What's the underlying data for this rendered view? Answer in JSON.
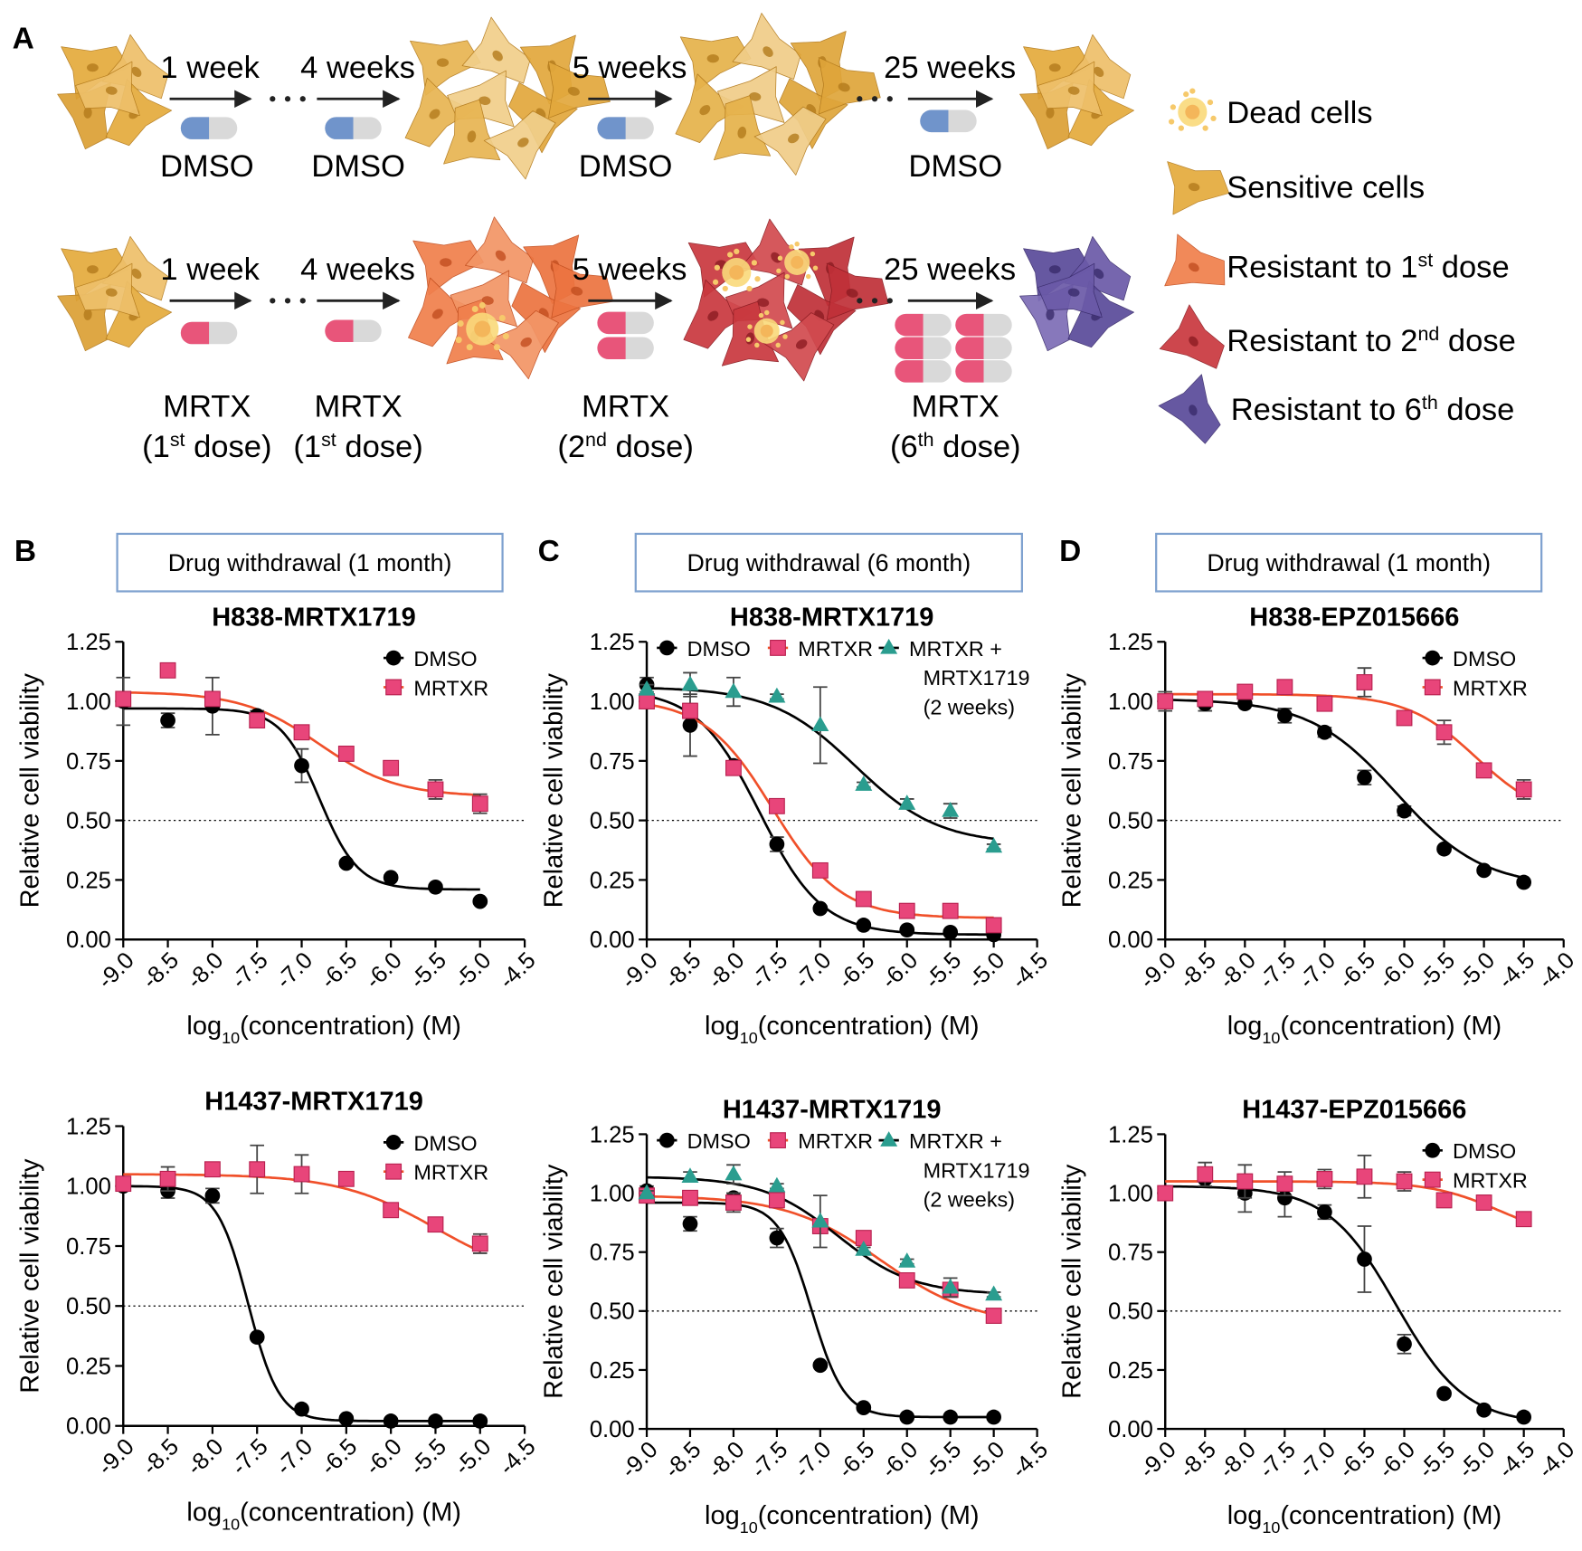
{
  "panel_a": {
    "label": "A",
    "rows": [
      {
        "steps": [
          {
            "time": "1 week",
            "drug": [
              [
                "DMSO"
              ]
            ]
          },
          {
            "time": "4 weeks",
            "drug": [
              [
                "DMSO"
              ]
            ]
          },
          {
            "time": "5 weeks",
            "drug": [
              [
                "DMSO"
              ]
            ]
          },
          {
            "time": "25 weeks",
            "drug": [
              [
                "DMSO"
              ]
            ]
          }
        ]
      },
      {
        "steps": [
          {
            "time": "1 week",
            "drug": [
              [
                "MRTX"
              ],
              [
                "(1",
                "st",
                " dose)"
              ]
            ]
          },
          {
            "time": "4 weeks",
            "drug": [
              [
                "MRTX"
              ],
              [
                "(1",
                "st",
                " dose)"
              ]
            ]
          },
          {
            "time": "5 weeks",
            "drug": [
              [
                "MRTX"
              ],
              [
                "(2",
                "nd",
                " dose)"
              ]
            ]
          },
          {
            "time": "25 weeks",
            "drug": [
              [
                "MRTX"
              ],
              [
                "(6",
                "th",
                " dose)"
              ]
            ]
          }
        ]
      }
    ],
    "legend": [
      [
        "Dead cells"
      ],
      [
        "Sensitive cells"
      ],
      [
        "Resistant to 1",
        "st",
        " dose"
      ],
      [
        "Resistant to 2",
        "nd",
        " dose"
      ],
      [
        "Resistant to 6",
        "th",
        " dose"
      ]
    ]
  },
  "columns": [
    {
      "label": "B",
      "header": "Drug withdrawal (1 month)"
    },
    {
      "label": "C",
      "header": "Drug withdrawal (6 month)"
    },
    {
      "label": "D",
      "header": "Drug withdrawal (1 month)"
    }
  ],
  "chart_data": [
    {
      "type": "scatter",
      "title": "H838-MRTX1719",
      "ylabel": "Relative cell viability",
      "xlabel": [
        "log",
        "10",
        "(concentration) (M)"
      ],
      "xlim": [
        -9,
        -4.5
      ],
      "ylim": [
        0,
        1.25
      ],
      "hline": 0.5,
      "legend": "upper-right",
      "xticks": [
        {
          "value": -9,
          "label": "-9.0"
        },
        -8.5,
        {
          "value": -8,
          "label": "-8.0"
        },
        -7.5,
        {
          "value": -7,
          "label": "-7.0"
        },
        -6.5,
        {
          "value": -6,
          "label": "-6.0"
        },
        -5.5,
        {
          "value": -5,
          "label": "-5.0"
        },
        -4.5
      ],
      "yticks": [
        {
          "value": 0,
          "label": "0.00"
        },
        0.25,
        {
          "value": 0.5,
          "label": "0.50"
        },
        0.75,
        {
          "value": 1,
          "label": "1.00"
        },
        1.25
      ],
      "x": [
        -9,
        -8.5,
        -8,
        -7.5,
        -7,
        -6.5,
        -6,
        -5.5,
        -5
      ],
      "series": [
        {
          "name": "DMSO",
          "color": "#000000",
          "line_color": "#000000",
          "marker": "circle",
          "values": [
            1.0,
            0.92,
            0.98,
            0.94,
            0.73,
            0.32,
            0.26,
            0.22,
            0.16
          ],
          "errors": [
            0.1,
            0.03,
            0.12,
            0.02,
            0.07,
            0.01,
            0.01,
            0.01,
            0.01
          ],
          "fit": {
            "top": 0.97,
            "bottom": 0.21,
            "log_ec50": -6.8,
            "hill": 2.0
          }
        },
        {
          "name": "MRTXR",
          "color": "#e8457a",
          "line_color": "#f0502a",
          "marker": "square",
          "values": [
            1.01,
            1.13,
            1.01,
            0.92,
            0.87,
            0.78,
            0.72,
            0.63,
            0.57
          ],
          "errors": [
            0.01,
            0.01,
            0.02,
            0.03,
            0.02,
            0.03,
            0.03,
            0.04,
            0.04
          ],
          "fit": {
            "top": 1.04,
            "bottom": 0.6,
            "log_ec50": -6.8,
            "hill": 1.0
          }
        }
      ]
    },
    {
      "type": "scatter",
      "title": "H838-MRTX1719",
      "ylabel": "Relative cell viability",
      "xlabel": [
        "log",
        "10",
        "(concentration) (M)"
      ],
      "xlim": [
        -9,
        -4.5
      ],
      "ylim": [
        0,
        1.25
      ],
      "hline": 0.5,
      "legend": "top",
      "xticks": [
        {
          "value": -9,
          "label": "-9.0"
        },
        -8.5,
        {
          "value": -8,
          "label": "-8.0"
        },
        -7.5,
        {
          "value": -7,
          "label": "-7.0"
        },
        -6.5,
        {
          "value": -6,
          "label": "-6.0"
        },
        -5.5,
        {
          "value": -5,
          "label": "-5.0"
        },
        -4.5
      ],
      "yticks": [
        {
          "value": 0,
          "label": "0.00"
        },
        0.25,
        {
          "value": 0.5,
          "label": "0.50"
        },
        0.75,
        {
          "value": 1,
          "label": "1.00"
        },
        1.25
      ],
      "x": [
        -9,
        -8.5,
        -8,
        -7.5,
        -7,
        -6.5,
        -6,
        -5.5,
        -5
      ],
      "series": [
        {
          "name": "DMSO",
          "color": "#000000",
          "line_color": "#000000",
          "marker": "circle",
          "values": [
            1.07,
            0.9,
            0.73,
            0.4,
            0.13,
            0.06,
            0.04,
            0.03,
            0.02
          ],
          "errors": [
            0.03,
            0.13,
            0.02,
            0.03,
            0.01,
            0.01,
            0.01,
            0.01,
            0.01
          ],
          "fit": {
            "top": 1.05,
            "bottom": 0.02,
            "log_ec50": -7.7,
            "hill": 1.2
          }
        },
        {
          "name": "MRTXR",
          "color": "#e8457a",
          "line_color": "#f0502a",
          "marker": "square",
          "values": [
            1.0,
            0.96,
            0.72,
            0.56,
            0.29,
            0.17,
            0.12,
            0.12,
            0.06
          ],
          "errors": [
            0.02,
            0.03,
            0.02,
            0.02,
            0.01,
            0.01,
            0.01,
            0.01,
            0.02
          ],
          "fit": {
            "top": 1.01,
            "bottom": 0.09,
            "log_ec50": -7.55,
            "hill": 1.1
          }
        },
        {
          "name": [
            "MRTXR +",
            "MRTX1719",
            "(2 weeks)"
          ],
          "color": "#2a9d8f",
          "line_color": "#000000",
          "marker": "triangle",
          "values": [
            1.05,
            1.07,
            1.04,
            1.02,
            0.9,
            0.65,
            0.57,
            0.54,
            0.39
          ],
          "errors": [
            0.02,
            0.05,
            0.06,
            0.01,
            0.16,
            0.01,
            0.02,
            0.03,
            0.01
          ],
          "fit": {
            "top": 1.06,
            "bottom": 0.4,
            "log_ec50": -6.6,
            "hill": 0.9
          }
        }
      ]
    },
    {
      "type": "scatter",
      "title": "H838-EPZ015666",
      "ylabel": "Relative cell viability",
      "xlabel": [
        "log",
        "10",
        "(concentration) (M)"
      ],
      "xlim": [
        -9,
        -4
      ],
      "ylim": [
        0,
        1.25
      ],
      "hline": 0.5,
      "legend": "upper-right",
      "xticks": [
        {
          "value": -9,
          "label": "-9.0"
        },
        -8.5,
        {
          "value": -8,
          "label": "-8.0"
        },
        -7.5,
        {
          "value": -7,
          "label": "-7.0"
        },
        -6.5,
        {
          "value": -6,
          "label": "-6.0"
        },
        -5.5,
        {
          "value": -5,
          "label": "-5.0"
        },
        -4.5,
        {
          "value": -4,
          "label": "-4.0"
        }
      ],
      "yticks": [
        {
          "value": 0,
          "label": "0.00"
        },
        0.25,
        {
          "value": 0.5,
          "label": "0.50"
        },
        0.75,
        {
          "value": 1,
          "label": "1.00"
        },
        1.25
      ],
      "x": [
        -9,
        -8.5,
        -8,
        -7.5,
        -7,
        -6.5,
        -6,
        -5.5,
        -5,
        -4.5
      ],
      "series": [
        {
          "name": "DMSO",
          "color": "#000000",
          "line_color": "#000000",
          "marker": "circle",
          "values": [
            1.0,
            0.99,
            0.99,
            0.94,
            0.87,
            0.68,
            0.54,
            0.38,
            0.29,
            0.24
          ],
          "errors": [
            0.04,
            0.03,
            0.01,
            0.03,
            0.02,
            0.03,
            0.02,
            0.01,
            0.01,
            0.01
          ],
          "fit": {
            "top": 1.01,
            "bottom": 0.22,
            "log_ec50": -6.1,
            "hill": 0.8
          }
        },
        {
          "name": "MRTXR",
          "color": "#e8457a",
          "line_color": "#f0502a",
          "marker": "square",
          "values": [
            1.0,
            1.01,
            1.04,
            1.06,
            0.99,
            1.08,
            0.93,
            0.87,
            0.71,
            0.63
          ],
          "errors": [
            0.01,
            0.01,
            0.01,
            0.02,
            0.02,
            0.06,
            0.01,
            0.05,
            0.02,
            0.04
          ],
          "fit": {
            "top": 1.03,
            "bottom": 0.5,
            "log_ec50": -5.1,
            "hill": 1.0
          }
        }
      ]
    },
    {
      "type": "scatter",
      "title": "H1437-MRTX1719",
      "ylabel": "Relative cell viability",
      "xlabel": [
        "log",
        "10",
        "(concentration) (M)"
      ],
      "xlim": [
        -9,
        -4.5
      ],
      "ylim": [
        0,
        1.25
      ],
      "hline": 0.5,
      "legend": "upper-right",
      "xticks": [
        {
          "value": -9,
          "label": "-9.0"
        },
        -8.5,
        {
          "value": -8,
          "label": "-8.0"
        },
        -7.5,
        {
          "value": -7,
          "label": "-7.0"
        },
        -6.5,
        {
          "value": -6,
          "label": "-6.0"
        },
        -5.5,
        {
          "value": -5,
          "label": "-5.0"
        },
        -4.5
      ],
      "yticks": [
        {
          "value": 0,
          "label": "0.00"
        },
        0.25,
        {
          "value": 0.5,
          "label": "0.50"
        },
        0.75,
        {
          "value": 1,
          "label": "1.00"
        },
        1.25
      ],
      "x": [
        -9,
        -8.5,
        -8,
        -7.5,
        -7,
        -6.5,
        -6,
        -5.5,
        -5
      ],
      "series": [
        {
          "name": "DMSO",
          "color": "#000000",
          "line_color": "#000000",
          "marker": "circle",
          "values": [
            1.0,
            0.98,
            0.96,
            0.37,
            0.07,
            0.03,
            0.02,
            0.02,
            0.02
          ],
          "errors": [
            0.02,
            0.03,
            0.03,
            0.01,
            0.01,
            0.01,
            0.01,
            0.01,
            0.01
          ],
          "fit": {
            "top": 1.0,
            "bottom": 0.02,
            "log_ec50": -7.6,
            "hill": 2.5
          }
        },
        {
          "name": "MRTXR",
          "color": "#e8457a",
          "line_color": "#f0502a",
          "marker": "square",
          "values": [
            1.01,
            1.03,
            1.07,
            1.07,
            1.05,
            1.03,
            0.9,
            0.84,
            0.76
          ],
          "errors": [
            0.01,
            0.05,
            0.01,
            0.1,
            0.08,
            0.01,
            0.02,
            0.01,
            0.04
          ],
          "fit": {
            "top": 1.05,
            "bottom": 0.6,
            "log_ec50": -5.5,
            "hill": 0.8
          }
        }
      ]
    },
    {
      "type": "scatter",
      "title": "H1437-MRTX1719",
      "ylabel": "Relative cell viability",
      "xlabel": [
        "log",
        "10",
        "(concentration) (M)"
      ],
      "xlim": [
        -9,
        -4.5
      ],
      "ylim": [
        0,
        1.25
      ],
      "hline": 0.5,
      "legend": "top",
      "xticks": [
        {
          "value": -9,
          "label": "-9.0"
        },
        -8.5,
        {
          "value": -8,
          "label": "-8.0"
        },
        -7.5,
        {
          "value": -7,
          "label": "-7.0"
        },
        -6.5,
        {
          "value": -6,
          "label": "-6.0"
        },
        -5.5,
        {
          "value": -5,
          "label": "-5.0"
        },
        -4.5
      ],
      "yticks": [
        {
          "value": 0,
          "label": "0.00"
        },
        0.25,
        {
          "value": 0.5,
          "label": "0.50"
        },
        0.75,
        {
          "value": 1,
          "label": "1.00"
        },
        1.25
      ],
      "x": [
        -9,
        -8.5,
        -8,
        -7.5,
        -7,
        -6.5,
        -6,
        -5.5,
        -5
      ],
      "series": [
        {
          "name": "DMSO",
          "color": "#000000",
          "line_color": "#000000",
          "marker": "circle",
          "values": [
            1.01,
            0.87,
            0.98,
            0.81,
            0.27,
            0.09,
            0.05,
            0.05,
            0.05
          ],
          "errors": [
            0.02,
            0.03,
            0.02,
            0.04,
            0.01,
            0.01,
            0.01,
            0.01,
            0.01
          ],
          "fit": {
            "top": 0.96,
            "bottom": 0.05,
            "log_ec50": -7.1,
            "hill": 2.3
          }
        },
        {
          "name": "MRTXR",
          "color": "#e8457a",
          "line_color": "#f0502a",
          "marker": "square",
          "values": [
            0.99,
            0.98,
            0.96,
            0.97,
            0.86,
            0.81,
            0.63,
            0.59,
            0.48
          ],
          "errors": [
            0.01,
            0.01,
            0.04,
            0.03,
            0.03,
            0.01,
            0.02,
            0.03,
            0.01
          ],
          "fit": {
            "top": 0.99,
            "bottom": 0.44,
            "log_ec50": -6.3,
            "hill": 0.8
          }
        },
        {
          "name": [
            "MRTXR +",
            "MRTX1719",
            "(2 weeks)"
          ],
          "color": "#2a9d8f",
          "line_color": "#000000",
          "marker": "triangle",
          "values": [
            1.0,
            1.07,
            1.08,
            1.03,
            0.88,
            0.76,
            0.71,
            0.6,
            0.57
          ],
          "errors": [
            0.01,
            0.02,
            0.04,
            0.01,
            0.11,
            0.01,
            0.01,
            0.04,
            0.01
          ],
          "fit": {
            "top": 1.07,
            "bottom": 0.57,
            "log_ec50": -6.8,
            "hill": 1.0
          }
        }
      ]
    },
    {
      "type": "scatter",
      "title": "H1437-EPZ015666",
      "ylabel": "Relative cell viability",
      "xlabel": [
        "log",
        "10",
        "(concentration) (M)"
      ],
      "xlim": [
        -9,
        -4
      ],
      "ylim": [
        0,
        1.25
      ],
      "hline": 0.5,
      "legend": "upper-right",
      "xticks": [
        {
          "value": -9,
          "label": "-9.0"
        },
        -8.5,
        {
          "value": -8,
          "label": "-8.0"
        },
        -7.5,
        {
          "value": -7,
          "label": "-7.0"
        },
        -6.5,
        {
          "value": -6,
          "label": "-6.0"
        },
        -5.5,
        {
          "value": -5,
          "label": "-5.0"
        },
        -4.5,
        {
          "value": -4,
          "label": "-4.0"
        }
      ],
      "yticks": [
        {
          "value": 0,
          "label": "0.00"
        },
        0.25,
        {
          "value": 0.5,
          "label": "0.50"
        },
        0.75,
        {
          "value": 1,
          "label": "1.00"
        },
        1.25
      ],
      "x": [
        -9,
        -8.5,
        -8,
        -7.5,
        -7,
        -6.5,
        -6,
        -5.5,
        -5,
        -4.5
      ],
      "series": [
        {
          "name": "DMSO",
          "color": "#000000",
          "line_color": "#000000",
          "marker": "circle",
          "values": [
            1.0,
            1.06,
            1.0,
            0.98,
            0.92,
            0.72,
            0.36,
            0.15,
            0.08,
            0.05
          ],
          "errors": [
            0.02,
            0.01,
            0.08,
            0.08,
            0.03,
            0.14,
            0.04,
            0.01,
            0.01,
            0.01
          ],
          "fit": {
            "top": 1.03,
            "bottom": 0.02,
            "log_ec50": -6.1,
            "hill": 1.0
          }
        },
        {
          "name": "MRTXR",
          "color": "#e8457a",
          "line_color": "#f0502a",
          "marker": "square",
          "values": [
            1.0,
            1.08,
            1.05,
            1.04,
            1.06,
            1.07,
            1.05,
            0.97,
            0.96,
            0.89
          ],
          "errors": [
            0.02,
            0.05,
            0.07,
            0.05,
            0.04,
            0.09,
            0.04,
            0.03,
            0.03,
            0.03
          ],
          "fit": {
            "top": 1.05,
            "bottom": 0.8,
            "log_ec50": -4.8,
            "hill": 1.0
          }
        }
      ]
    }
  ]
}
